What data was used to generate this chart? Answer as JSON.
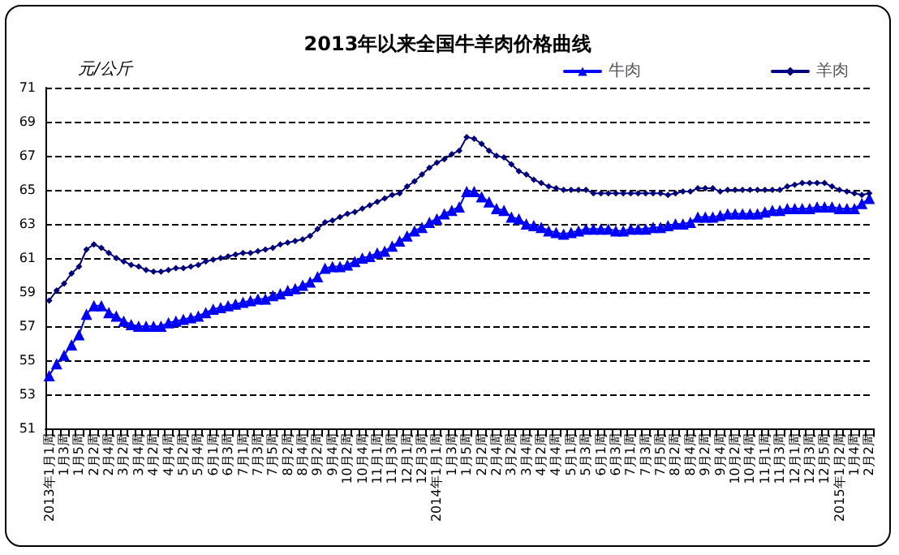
{
  "chart_data": {
    "type": "line",
    "title": "2013年以来全国牛羊肉价格曲线",
    "ylabel": "元/公斤",
    "categories": [
      "2013年1月1周",
      null,
      "1月3周",
      null,
      "1月5周",
      null,
      "2月2周",
      null,
      "2月4周",
      null,
      "3月2周",
      null,
      "3月4周",
      null,
      "4月2周",
      null,
      "4月4周",
      null,
      "5月2周",
      null,
      "5月4周",
      null,
      "6月1周",
      null,
      "6月3周",
      null,
      "7月1周",
      null,
      "7月3周",
      null,
      "7月5周",
      null,
      "8月2周",
      null,
      "8月4周",
      null,
      "9月2周",
      null,
      "9月4周",
      null,
      "10月2周",
      null,
      "10月4周",
      null,
      "11月1周",
      null,
      "11月3周",
      null,
      "12月1周",
      null,
      "12月3周",
      null,
      "2014年1月1周",
      null,
      "1月3周",
      null,
      "1月5周",
      null,
      "2月2周",
      null,
      "2月4周",
      null,
      "3月2周",
      null,
      "3月4周",
      null,
      "4月2周",
      null,
      "4月4周",
      null,
      "5月1周",
      null,
      "5月3周",
      null,
      "6月1周",
      null,
      "6月3周",
      null,
      "7月1周",
      null,
      "7月3周",
      null,
      "7月5周",
      null,
      "8月2周",
      null,
      "8月4周",
      null,
      "9月2周",
      null,
      "9月4周",
      null,
      "10月2周",
      null,
      "10月4周",
      null,
      "11月1周",
      null,
      "11月3周",
      null,
      "12月1周",
      null,
      "12月3周",
      null,
      "12月5周",
      null,
      "2015年1月2周",
      null,
      "1月4周",
      null,
      "2月2周"
    ],
    "series": [
      {
        "name": "牛肉",
        "color": "#0000ff",
        "marker": "triangle",
        "values": [
          54.1,
          54.8,
          55.3,
          55.9,
          56.5,
          57.7,
          58.2,
          58.2,
          57.8,
          57.6,
          57.3,
          57.1,
          57.0,
          57.0,
          57.0,
          57.0,
          57.2,
          57.3,
          57.4,
          57.5,
          57.6,
          57.8,
          58.0,
          58.1,
          58.2,
          58.3,
          58.4,
          58.5,
          58.6,
          58.6,
          58.8,
          58.9,
          59.1,
          59.2,
          59.4,
          59.6,
          59.9,
          60.4,
          60.5,
          60.5,
          60.6,
          60.8,
          61.0,
          61.1,
          61.3,
          61.4,
          61.7,
          62.0,
          62.3,
          62.6,
          62.8,
          63.1,
          63.3,
          63.6,
          63.8,
          64.0,
          64.9,
          64.9,
          64.6,
          64.3,
          63.9,
          63.8,
          63.4,
          63.3,
          63.0,
          62.9,
          62.8,
          62.6,
          62.5,
          62.4,
          62.5,
          62.6,
          62.7,
          62.7,
          62.7,
          62.7,
          62.6,
          62.6,
          62.7,
          62.7,
          62.7,
          62.8,
          62.8,
          62.9,
          63.0,
          63.0,
          63.1,
          63.4,
          63.4,
          63.4,
          63.5,
          63.6,
          63.6,
          63.6,
          63.6,
          63.6,
          63.7,
          63.8,
          63.8,
          63.9,
          63.9,
          63.9,
          63.9,
          64.0,
          64.0,
          64.0,
          63.9,
          63.9,
          63.9,
          64.2,
          64.5
        ]
      },
      {
        "name": "羊肉",
        "color": "#000080",
        "marker": "diamond",
        "values": [
          58.5,
          59.1,
          59.5,
          60.1,
          60.5,
          61.5,
          61.8,
          61.6,
          61.3,
          61.0,
          60.8,
          60.6,
          60.5,
          60.3,
          60.2,
          60.2,
          60.3,
          60.4,
          60.4,
          60.5,
          60.6,
          60.8,
          60.9,
          61.0,
          61.1,
          61.2,
          61.3,
          61.3,
          61.4,
          61.5,
          61.6,
          61.8,
          61.9,
          62.0,
          62.1,
          62.3,
          62.7,
          63.1,
          63.2,
          63.4,
          63.6,
          63.7,
          63.9,
          64.1,
          64.3,
          64.5,
          64.7,
          64.8,
          65.2,
          65.5,
          65.9,
          66.3,
          66.6,
          66.8,
          67.1,
          67.3,
          68.1,
          68.0,
          67.7,
          67.3,
          67.0,
          66.9,
          66.5,
          66.1,
          65.9,
          65.6,
          65.4,
          65.2,
          65.1,
          65.0,
          65.0,
          65.0,
          65.0,
          64.8,
          64.8,
          64.8,
          64.8,
          64.8,
          64.8,
          64.8,
          64.8,
          64.8,
          64.8,
          64.7,
          64.8,
          64.9,
          64.9,
          65.1,
          65.1,
          65.1,
          64.9,
          65.0,
          65.0,
          65.0,
          65.0,
          65.0,
          65.0,
          65.0,
          65.0,
          65.2,
          65.3,
          65.4,
          65.4,
          65.4,
          65.4,
          65.2,
          65.0,
          64.9,
          64.8,
          64.7,
          64.8
        ]
      }
    ],
    "ylim": [
      51,
      71
    ],
    "yticks": [
      51,
      53,
      55,
      57,
      59,
      61,
      63,
      65,
      67,
      69,
      71
    ],
    "grid": "y",
    "legend": "top right"
  }
}
